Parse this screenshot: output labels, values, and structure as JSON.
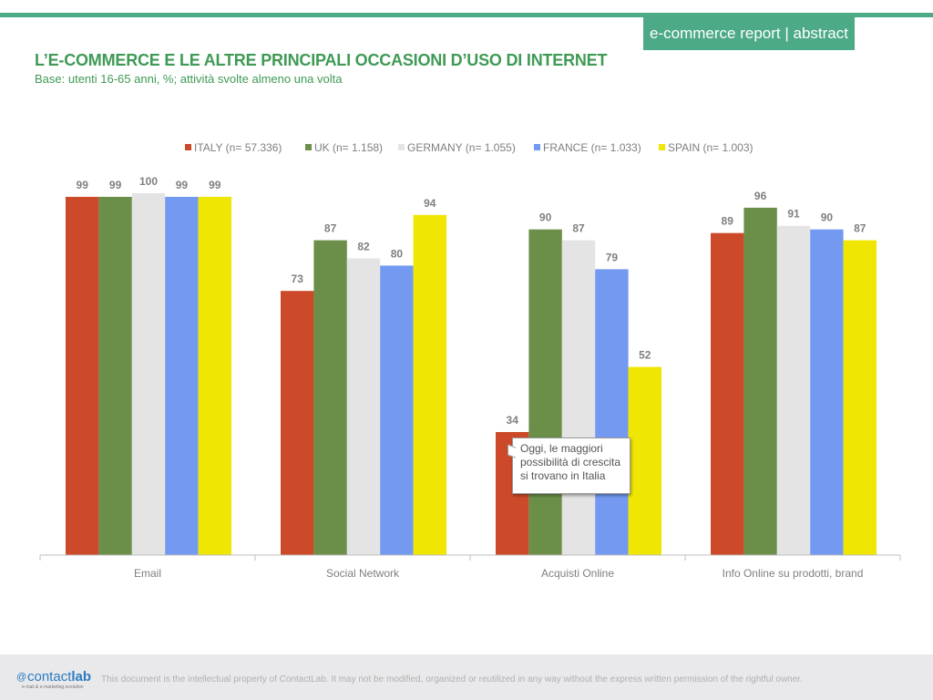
{
  "header": {
    "report_tag": "e-commerce report | abstract",
    "title": "L’E-COMMERCE E LE ALTRE PRINCIPALI OCCASIONI D’USO DI INTERNET",
    "subtitle": "Base: utenti 16-65 anni, %; attività svolte almeno una volta"
  },
  "chart_data": {
    "type": "bar",
    "categories": [
      "Email",
      "Social Network",
      "Acquisti Online",
      "Info Online su prodotti, brand"
    ],
    "series": [
      {
        "name": "ITALY (n= 57.336)",
        "color": "#cc4a2a",
        "values": [
          99,
          73,
          34,
          89
        ]
      },
      {
        "name": "UK (n= 1.158)",
        "color": "#6b8e48",
        "values": [
          99,
          87,
          90,
          96
        ]
      },
      {
        "name": "GERMANY (n= 1.055)",
        "color": "#e4e4e4",
        "values": [
          100,
          82,
          87,
          91
        ]
      },
      {
        "name": "FRANCE (n= 1.033)",
        "color": "#7399f0",
        "values": [
          99,
          80,
          79,
          90
        ]
      },
      {
        "name": "SPAIN (n= 1.003)",
        "color": "#f0e603",
        "values": [
          99,
          94,
          52,
          87
        ]
      }
    ],
    "ylim": [
      0,
      100
    ],
    "grid": false,
    "legend": "top",
    "data_labels": true
  },
  "callout": {
    "text": "Oggi, le maggiori possibilità di crescita si trovano in Italia"
  },
  "footer": {
    "logo_prefix": "contact",
    "logo_bold": "lab",
    "logo_tagline": "e-mail & e-marketing evolution",
    "note": "This document is the intellectual property of ContactLab. It may not be modified, organized or reutilized in any way without the express written permission of the rightful owner."
  }
}
